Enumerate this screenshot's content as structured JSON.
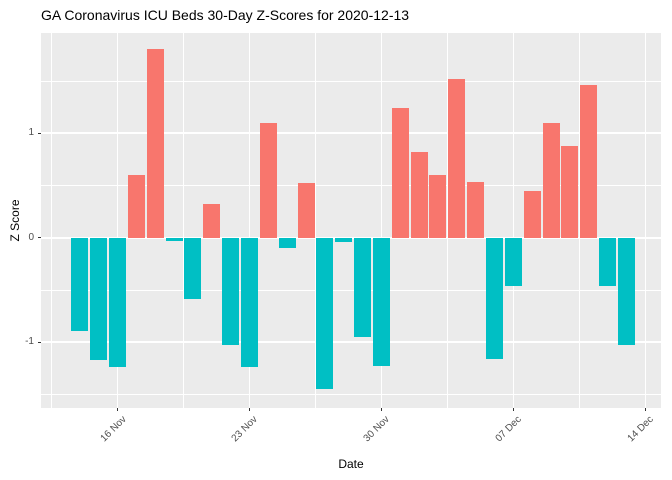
{
  "chart_data": {
    "type": "bar",
    "title": "GA Coronavirus ICU Beds 30-Day Z-Scores for 2020-12-13",
    "xlabel": "Date",
    "ylabel": "Z Score",
    "dates": [
      "2020-11-14",
      "2020-11-15",
      "2020-11-16",
      "2020-11-17",
      "2020-11-18",
      "2020-11-19",
      "2020-11-20",
      "2020-11-21",
      "2020-11-22",
      "2020-11-23",
      "2020-11-24",
      "2020-11-25",
      "2020-11-26",
      "2020-11-27",
      "2020-11-28",
      "2020-11-29",
      "2020-11-30",
      "2020-12-01",
      "2020-12-02",
      "2020-12-03",
      "2020-12-04",
      "2020-12-05",
      "2020-12-06",
      "2020-12-07",
      "2020-12-08",
      "2020-12-09",
      "2020-12-10",
      "2020-12-11",
      "2020-12-12",
      "2020-12-13"
    ],
    "values": [
      -0.89,
      -1.17,
      -1.24,
      0.6,
      1.81,
      -0.03,
      -0.59,
      0.32,
      -1.03,
      -1.24,
      1.1,
      -0.1,
      0.52,
      -1.45,
      -0.04,
      -0.95,
      -1.23,
      1.24,
      0.82,
      0.6,
      1.52,
      0.53,
      -1.16,
      -0.46,
      0.45,
      1.1,
      0.88,
      1.46,
      -0.46,
      -1.03
    ],
    "x_ticks": [
      {
        "label": "16 Nov",
        "index": 2
      },
      {
        "label": "23 Nov",
        "index": 9
      },
      {
        "label": "30 Nov",
        "index": 16
      },
      {
        "label": "07 Dec",
        "index": 23
      },
      {
        "label": "14 Dec",
        "index": 30
      }
    ],
    "x_minor_ticks": [
      -1.5,
      5.5,
      12.5,
      19.5,
      26.5
    ],
    "y_ticks": [
      {
        "label": "-1",
        "value": -1
      },
      {
        "label": "0",
        "value": 0
      },
      {
        "label": "1",
        "value": 1
      }
    ],
    "y_minor_ticks": [
      -1.5,
      -0.5,
      0.5,
      1.5
    ],
    "xlim": [
      -2.06,
      30.83
    ],
    "ylim": [
      -1.63,
      1.96
    ],
    "legend": "none",
    "positive_color": "#F8766D",
    "negative_color": "#00BFC4",
    "panel_background": "#EBEBEB",
    "grid_color": "#FFFFFF",
    "axis_text_color": "#4D4D4D",
    "title_color": "#000000"
  }
}
